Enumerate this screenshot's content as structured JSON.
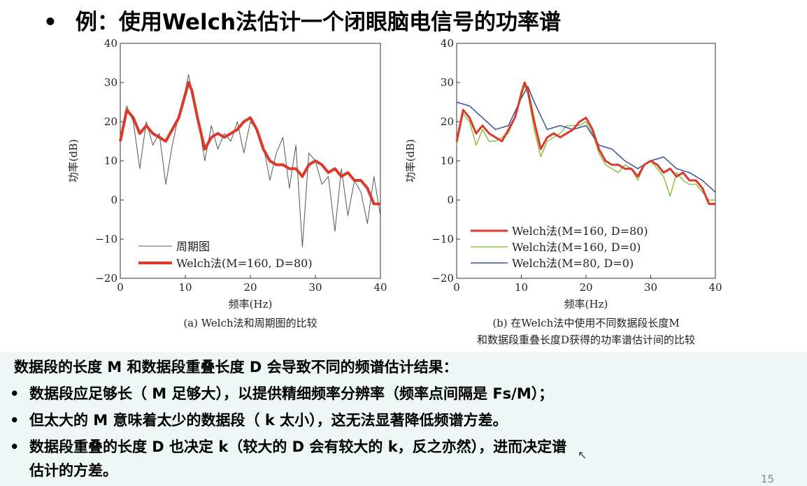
{
  "slide": {
    "bullet": "•",
    "title": "例：使用Welch法估计一个闭眼脑电信号的功率谱",
    "page_number": "15"
  },
  "charts": {
    "left": {
      "caption": "(a) Welch法和周期图的比较",
      "xlabel": "频率(Hz)",
      "ylabel": "功率(dB)",
      "legend": [
        "周期图",
        "Welch法(M=160, D=80)"
      ]
    },
    "right": {
      "caption_line1": "(b) 在Welch法中使用不同数据段长度M",
      "caption_line2": "和数据段重叠长度D获得的功率谱估计间的比较",
      "xlabel": "频率(Hz)",
      "ylabel": "功率(dB)",
      "legend": [
        "Welch法(M=160, D=80)",
        "Welch法(M=160, D=0)",
        "Welch法(M=80, D=0)"
      ]
    },
    "ticks": {
      "x": [
        "0",
        "10",
        "20",
        "30",
        "40"
      ],
      "y": [
        "40",
        "30",
        "20",
        "10",
        "0",
        "−10",
        "−20"
      ]
    }
  },
  "chart_data": [
    {
      "type": "line",
      "title": "(a) Welch法和周期图的比较",
      "xlabel": "频率(Hz)",
      "ylabel": "功率(dB)",
      "xlim": [
        0,
        40
      ],
      "ylim": [
        -20,
        40
      ],
      "series": [
        {
          "name": "周期图",
          "color": "#555555",
          "x": [
            0,
            1,
            2,
            3,
            4,
            5,
            6,
            7,
            8,
            9,
            10,
            10.5,
            11,
            12,
            13,
            14,
            15,
            16,
            17,
            18,
            19,
            20,
            21,
            22,
            23,
            24,
            25,
            26,
            27,
            28,
            29,
            30,
            31,
            32,
            33,
            34,
            35,
            36,
            37,
            38,
            39,
            40
          ],
          "y": [
            15,
            24,
            20,
            8,
            20,
            14,
            17,
            4,
            14,
            22,
            28,
            32,
            28,
            20,
            10,
            19,
            13,
            17,
            15,
            20,
            12,
            20,
            18,
            14,
            5,
            12,
            16,
            3,
            14,
            -12,
            12,
            10,
            4,
            6,
            -8,
            8,
            -4,
            5,
            2,
            -6,
            6,
            -4
          ]
        },
        {
          "name": "Welch法(M=160, D=80)",
          "color": "#d93a2b",
          "x": [
            0,
            1,
            2,
            3,
            4,
            5,
            6,
            7,
            8,
            9,
            10,
            10.5,
            11,
            12,
            13,
            14,
            15,
            16,
            17,
            18,
            19,
            20,
            21,
            22,
            23,
            24,
            25,
            26,
            27,
            28,
            29,
            30,
            31,
            32,
            33,
            34,
            35,
            36,
            37,
            38,
            39,
            40
          ],
          "y": [
            15,
            23,
            21,
            17,
            19,
            17,
            16,
            15,
            18,
            21,
            27,
            30,
            28,
            20,
            13,
            16,
            17,
            16,
            17,
            18,
            20,
            21,
            18,
            13,
            10,
            9,
            9,
            8,
            8,
            6,
            9,
            10,
            9,
            7,
            8,
            6,
            7,
            5,
            5,
            3,
            -1,
            -1
          ]
        }
      ]
    },
    {
      "type": "line",
      "title": "(b) 在Welch法中使用不同数据段长度M 和数据段重叠长度D获得的功率谱估计间的比较",
      "xlabel": "频率(Hz)",
      "ylabel": "功率(dB)",
      "xlim": [
        0,
        40
      ],
      "ylim": [
        -20,
        40
      ],
      "series": [
        {
          "name": "Welch法(M=160, D=80)",
          "color": "#d93a2b",
          "x": [
            0,
            1,
            2,
            3,
            4,
            5,
            6,
            7,
            8,
            9,
            10,
            10.5,
            11,
            12,
            13,
            14,
            15,
            16,
            17,
            18,
            19,
            20,
            21,
            22,
            23,
            24,
            25,
            26,
            27,
            28,
            29,
            30,
            31,
            32,
            33,
            34,
            35,
            36,
            37,
            38,
            39,
            40
          ],
          "y": [
            15,
            23,
            21,
            17,
            19,
            17,
            16,
            15,
            18,
            21,
            27,
            30,
            28,
            20,
            13,
            16,
            17,
            16,
            17,
            18,
            20,
            21,
            18,
            13,
            10,
            9,
            9,
            8,
            8,
            6,
            9,
            10,
            9,
            7,
            8,
            6,
            7,
            5,
            5,
            3,
            -1,
            -1
          ]
        },
        {
          "name": "Welch法(M=160, D=0)",
          "color": "#8fbf45",
          "x": [
            0,
            1,
            2,
            3,
            4,
            5,
            6,
            7,
            8,
            9,
            10,
            10.5,
            11,
            12,
            13,
            14,
            15,
            16,
            17,
            18,
            19,
            20,
            21,
            22,
            23,
            24,
            25,
            26,
            27,
            28,
            29,
            30,
            31,
            32,
            33,
            34,
            35,
            36,
            37,
            38,
            39,
            40
          ],
          "y": [
            14,
            22,
            20,
            14,
            18,
            15,
            15,
            16,
            17,
            21,
            28,
            29,
            27,
            18,
            11,
            15,
            16,
            17,
            19,
            19,
            19,
            20,
            17,
            12,
            9,
            8,
            7,
            9,
            8,
            5,
            9,
            10,
            8,
            6,
            1,
            7,
            5,
            4,
            4,
            2,
            0,
            0
          ]
        },
        {
          "name": "Welch法(M=80, D=0)",
          "color": "#3a4fa0",
          "x": [
            0,
            2,
            4,
            6,
            8,
            10,
            11,
            12,
            14,
            16,
            18,
            20,
            22,
            24,
            26,
            28,
            30,
            32,
            34,
            36,
            38,
            40
          ],
          "y": [
            25,
            24,
            21,
            18,
            19,
            26,
            29,
            25,
            18,
            19,
            18,
            19,
            14,
            13,
            10,
            8,
            10,
            11,
            8,
            7,
            5,
            2
          ]
        }
      ]
    }
  ],
  "box": {
    "line1": "数据段的长度 M 和数据段重叠长度 D 会导致不同的频谱估计结果：",
    "line2": "数据段应足够长（ M 足够大），以提供精细频率分辨率（频率点间隔是 Fs/M）；",
    "line3": "但太大的 M 意味着太少的数据段（ k 太小），这无法显著降低频谱方差。",
    "line4": "数据段重叠的长度 D 也决定 k（较大的 D 会有较大的 k，反之亦然），进而决定谱",
    "line5": "估计的方差。",
    "bullet": "•"
  }
}
